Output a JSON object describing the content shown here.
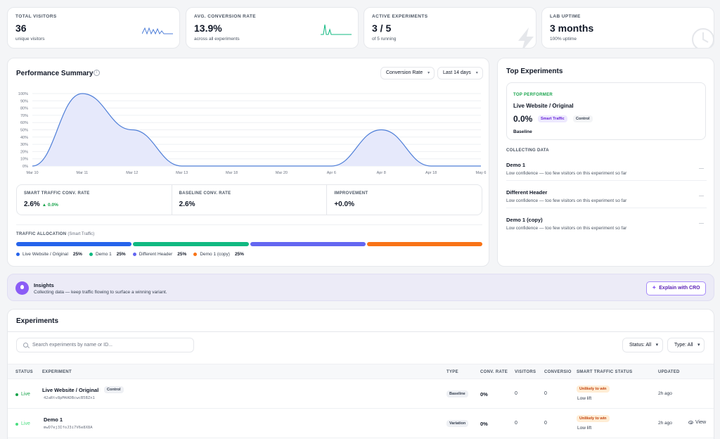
{
  "stats": [
    {
      "label": "TOTAL VISITORS",
      "value": "36",
      "sub": "unique visitors"
    },
    {
      "label": "AVG. CONVERSION RATE",
      "value": "13.9%",
      "sub": "across all experiments"
    },
    {
      "label": "ACTIVE EXPERIMENTS",
      "value": "3 / 5",
      "sub": "of 5 running"
    },
    {
      "label": "LAB UPTIME",
      "value": "3 months",
      "sub": "100% uptime"
    }
  ],
  "performance": {
    "title": "Performance Summary",
    "metric_dropdown": "Conversion Rate",
    "range_dropdown": "Last 14 days",
    "metrics": [
      {
        "label": "SMART TRAFFIC CONV. RATE",
        "value": "2.6%",
        "delta": "▲ 0.0%"
      },
      {
        "label": "BASELINE CONV. RATE",
        "value": "2.6%"
      },
      {
        "label": "IMPROVEMENT",
        "value": "+0.0%"
      }
    ],
    "allocation_label": "TRAFFIC ALLOCATION",
    "allocation_sublabel": "(Smart Traffic)",
    "allocation": [
      {
        "name": "Live Website / Original",
        "pct": "25%",
        "share": 25,
        "color": "#2563eb"
      },
      {
        "name": "Demo 1",
        "pct": "25%",
        "share": 25,
        "color": "#10b981"
      },
      {
        "name": "Different Header",
        "pct": "25%",
        "share": 25,
        "color": "#6366f1"
      },
      {
        "name": "Demo 1 (copy)",
        "pct": "25%",
        "share": 25,
        "color": "#f97316"
      }
    ]
  },
  "chart_data": {
    "type": "area",
    "x": [
      "Mar 10",
      "Mar 11",
      "Mar 12",
      "Mar 13",
      "Mar 18",
      "Mar 20",
      "Apr 6",
      "Apr 8",
      "Apr 18",
      "May 6"
    ],
    "series": [
      {
        "values": [
          0,
          100,
          50,
          0,
          0,
          0,
          0,
          50,
          0,
          0
        ]
      }
    ],
    "yticks": [
      "0%",
      "10%",
      "20%",
      "30%",
      "40%",
      "50%",
      "60%",
      "70%",
      "80%",
      "90%",
      "100%"
    ],
    "ylim": [
      0,
      100
    ],
    "grid": true,
    "color": "#4f7fd8"
  },
  "top_experiments": {
    "title": "Top Experiments",
    "top_performer_label": "TOP PERFORMER",
    "top_performer_name": "Live Website / Original",
    "top_performer_value": "0.0%",
    "badge_smart": "Smart Traffic",
    "badge_control": "Control",
    "baseline_label": "Baseline",
    "collecting_label": "COLLECTING DATA",
    "collecting": [
      {
        "name": "Demo 1",
        "desc": "Low confidence — too few visitors on this experiment so far",
        "mark": "—"
      },
      {
        "name": "Different Header",
        "desc": "Low confidence — too few visitors on this experiment so far",
        "mark": "—"
      },
      {
        "name": "Demo 1 (copy)",
        "desc": "Low confidence — too few visitors on this experiment so far",
        "mark": "—"
      }
    ]
  },
  "insights": {
    "title": "Insights",
    "desc": "Collecting data — keep traffic flowing to surface a winning variant.",
    "button": "Explain with CRO",
    "button_glyph": "✦"
  },
  "experiments": {
    "title": "Experiments",
    "search_placeholder": "Search experiments by name or ID...",
    "status_filter": "Status: All",
    "type_filter": "Type: All",
    "columns": [
      "STATUS",
      "EXPERIMENT",
      "TYPE",
      "CONV. RATE",
      "VISITORS",
      "CONVERSIO",
      "SMART TRAFFIC STATUS",
      "UPDATED"
    ],
    "rows": [
      {
        "status": "Live",
        "name": "Live Website / Original",
        "tag": "Control",
        "id": "42aRtv8pM4ADBcwcB5BZn1",
        "type": "Baseline",
        "conv": "0%",
        "visitors": "0",
        "conversions": "0",
        "st_badge": "Unlikely to win",
        "st_sub": "Low lift",
        "updated": "2h ago",
        "action": ""
      },
      {
        "status": "Live",
        "name": "Demo 1",
        "tag": "",
        "id": "mwD7ej3IfoJ3i7V6e8X8A",
        "type": "Variation",
        "conv": "0%",
        "visitors": "0",
        "conversions": "0",
        "st_badge": "Unlikely to win",
        "st_sub": "Low lift",
        "updated": "2h ago",
        "action": "View"
      }
    ]
  }
}
